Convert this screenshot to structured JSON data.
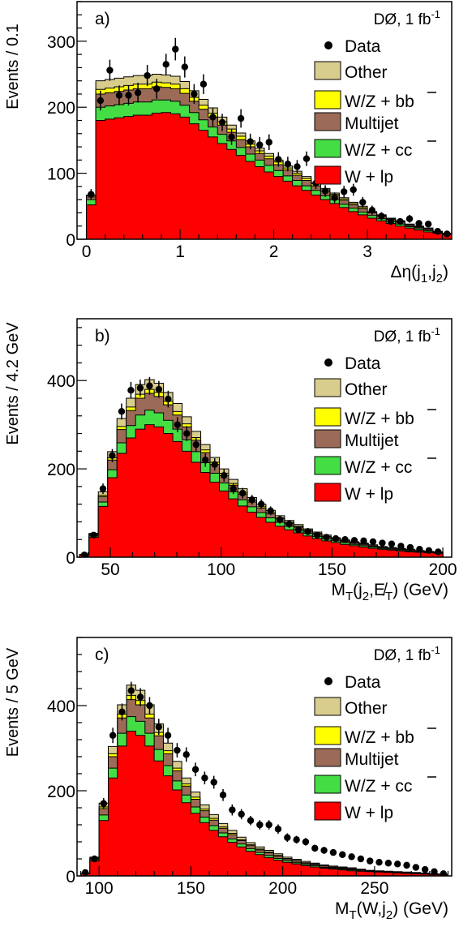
{
  "legend": {
    "data": "Data",
    "other": "Other",
    "wz_bb": "W/Z + bb",
    "multijet": "Multijet",
    "wz_cc": "W/Z + cc",
    "w_lp": "W + lp"
  },
  "colors": {
    "w_lp": "#ff0000",
    "wz_cc": "#44dd44",
    "multijet": "#9b6b57",
    "wz_bb": "#ffff00",
    "other": "#d8cd8c",
    "data": "#000000"
  },
  "chart_data": [
    {
      "type": "bar",
      "stacked": true,
      "panel_label": "a)",
      "corner_label": "DØ, 1 fb",
      "corner_label_sup": "-1",
      "ylabel": "Events / 0.1",
      "xlabel": "Δη(j",
      "xlabel_sub1": "1",
      "xlabel_mid": ",j",
      "xlabel_sub2": "2",
      "xlabel_end": ")",
      "xlim": [
        -0.1,
        3.9
      ],
      "ylim": [
        0,
        360
      ],
      "bin_start": 0.0,
      "bin_width": 0.1,
      "x_ticks": [
        0,
        1,
        2,
        3
      ],
      "y_ticks": [
        0,
        100,
        200,
        300
      ],
      "series": [
        {
          "key": "w_lp",
          "name": "W + lp",
          "values": [
            52,
            180,
            182,
            184,
            186,
            188,
            188,
            191,
            192,
            190,
            185,
            175,
            165,
            155,
            145,
            136,
            127,
            118,
            110,
            102,
            95,
            88,
            81,
            74,
            67,
            60,
            54,
            48,
            42,
            37,
            32,
            28,
            24,
            20,
            17,
            14,
            11,
            9,
            7
          ]
        },
        {
          "key": "wz_cc",
          "name": "W/Z + cc",
          "values": [
            8,
            20,
            20,
            20,
            20,
            20,
            20,
            20,
            19,
            19,
            18,
            17,
            16,
            15,
            14,
            13,
            12,
            11,
            10,
            10,
            9,
            8,
            8,
            7,
            7,
            6,
            6,
            5,
            5,
            4,
            4,
            3,
            3,
            3,
            2,
            2,
            2,
            1,
            1
          ]
        },
        {
          "key": "multijet",
          "name": "Multijet",
          "values": [
            4,
            20,
            20,
            20,
            20,
            20,
            20,
            20,
            19,
            19,
            18,
            17,
            16,
            15,
            14,
            13,
            12,
            11,
            10,
            10,
            9,
            9,
            8,
            8,
            7,
            7,
            6,
            6,
            5,
            5,
            4,
            4,
            3,
            3,
            2,
            2,
            2,
            1,
            1
          ]
        },
        {
          "key": "wz_bb",
          "name": "W/Z + bb",
          "values": [
            2,
            7,
            7,
            7,
            7,
            7,
            7,
            7,
            7,
            7,
            7,
            6,
            6,
            6,
            5,
            5,
            5,
            4,
            4,
            4,
            4,
            3,
            3,
            3,
            3,
            2,
            2,
            2,
            2,
            2,
            1,
            1,
            1,
            1,
            1,
            1,
            1,
            1,
            0
          ]
        },
        {
          "key": "other",
          "name": "Other",
          "values": [
            1,
            13,
            13,
            13,
            13,
            13,
            13,
            12,
            12,
            12,
            11,
            10,
            9,
            8,
            7,
            6,
            5,
            5,
            4,
            4,
            3,
            3,
            3,
            3,
            2,
            2,
            2,
            2,
            2,
            2,
            1,
            1,
            1,
            1,
            1,
            1,
            1,
            0,
            0
          ]
        }
      ],
      "data_points": {
        "name": "Data",
        "values": [
          68,
          210,
          256,
          218,
          218,
          222,
          248,
          228,
          265,
          288,
          261,
          220,
          235,
          185,
          177,
          155,
          183,
          148,
          143,
          147,
          121,
          114,
          110,
          122,
          85,
          73,
          63,
          72,
          75,
          56,
          44,
          35,
          27,
          27,
          31,
          24,
          23,
          12,
          8
        ],
        "errors": [
          8,
          15,
          16,
          15,
          15,
          15,
          16,
          15,
          16,
          17,
          16,
          15,
          15,
          14,
          13,
          12,
          14,
          12,
          12,
          12,
          11,
          11,
          10,
          11,
          9,
          9,
          8,
          9,
          9,
          8,
          7,
          6,
          5,
          5,
          6,
          5,
          5,
          4,
          3
        ]
      }
    },
    {
      "type": "bar",
      "stacked": true,
      "panel_label": "b)",
      "corner_label": "DØ, 1 fb",
      "corner_label_sup": "-1",
      "ylabel": "Events / 4.2 GeV",
      "xlabel": "M",
      "xlabel_sub1": "T",
      "xlabel_mid": "(j",
      "xlabel_sub2": "2",
      "xlabel_end": ",E̸",
      "xlabel_sub3": "T",
      "xlabel_tail": ") (GeV)",
      "xlim": [
        35,
        204
      ],
      "ylim": [
        0,
        540
      ],
      "bin_start": 36.2,
      "bin_width": 4.2,
      "x_ticks": [
        50,
        100,
        150,
        200
      ],
      "y_ticks": [
        0,
        200,
        400
      ],
      "series": [
        {
          "key": "w_lp",
          "name": "W + lp",
          "values": [
            5,
            45,
            115,
            180,
            235,
            270,
            290,
            300,
            295,
            280,
            262,
            240,
            215,
            192,
            170,
            150,
            132,
            116,
            102,
            90,
            79,
            70,
            62,
            55,
            48,
            42,
            37,
            33,
            29,
            26,
            23,
            20,
            18,
            16,
            14,
            12,
            11,
            10,
            9
          ]
        },
        {
          "key": "wz_cc",
          "name": "W/Z + cc",
          "values": [
            1,
            3,
            10,
            18,
            24,
            28,
            32,
            33,
            32,
            30,
            28,
            26,
            24,
            22,
            20,
            18,
            16,
            14,
            12,
            11,
            10,
            9,
            8,
            7,
            6,
            5,
            5,
            4,
            4,
            3,
            3,
            3,
            2,
            2,
            2,
            2,
            2,
            1,
            1
          ]
        },
        {
          "key": "multijet",
          "name": "Multijet",
          "values": [
            0,
            3,
            12,
            22,
            30,
            34,
            38,
            38,
            37,
            35,
            32,
            29,
            26,
            23,
            20,
            17,
            15,
            13,
            11,
            10,
            9,
            8,
            7,
            6,
            5,
            5,
            4,
            4,
            3,
            3,
            3,
            2,
            2,
            2,
            2,
            2,
            1,
            1,
            1
          ]
        },
        {
          "key": "wz_bb",
          "name": "W/Z + bb",
          "values": [
            0,
            1,
            3,
            5,
            7,
            8,
            9,
            9,
            9,
            8,
            8,
            7,
            6,
            6,
            5,
            5,
            4,
            4,
            3,
            3,
            3,
            2,
            2,
            2,
            2,
            2,
            1,
            1,
            1,
            1,
            1,
            1,
            1,
            1,
            1,
            1,
            0,
            0,
            0
          ]
        },
        {
          "key": "other",
          "name": "Other",
          "values": [
            0,
            2,
            8,
            14,
            18,
            20,
            22,
            22,
            21,
            20,
            18,
            16,
            14,
            12,
            11,
            10,
            9,
            8,
            7,
            6,
            5,
            5,
            4,
            4,
            3,
            3,
            3,
            2,
            2,
            2,
            2,
            2,
            1,
            1,
            1,
            1,
            1,
            1,
            1
          ]
        }
      ],
      "data_points": {
        "name": "Data",
        "values": [
          5,
          50,
          155,
          230,
          330,
          378,
          383,
          388,
          380,
          358,
          300,
          280,
          255,
          220,
          210,
          185,
          155,
          145,
          130,
          120,
          105,
          85,
          75,
          62,
          58,
          50,
          45,
          42,
          40,
          38,
          37,
          35,
          32,
          30,
          25,
          22,
          18,
          15,
          12
        ],
        "errors": [
          2,
          7,
          12,
          15,
          18,
          19,
          19,
          20,
          19,
          19,
          17,
          17,
          16,
          15,
          14,
          14,
          12,
          12,
          11,
          11,
          10,
          9,
          9,
          8,
          8,
          7,
          7,
          6,
          6,
          6,
          6,
          6,
          6,
          5,
          5,
          5,
          4,
          4,
          3
        ]
      }
    },
    {
      "type": "bar",
      "stacked": true,
      "panel_label": "c)",
      "corner_label": "DØ, 1 fb",
      "corner_label_sup": "-1",
      "ylabel": "Events / 5 GeV",
      "xlabel": "M",
      "xlabel_sub1": "T",
      "xlabel_mid": "(W,j",
      "xlabel_sub2": "2",
      "xlabel_end": ") (GeV)",
      "xlim": [
        88,
        292
      ],
      "ylim": [
        0,
        560
      ],
      "bin_start": 90,
      "bin_width": 5,
      "x_ticks": [
        100,
        150,
        200,
        250
      ],
      "y_ticks": [
        0,
        200,
        400
      ],
      "series": [
        {
          "key": "w_lp",
          "name": "W + lp",
          "values": [
            5,
            35,
            130,
            230,
            305,
            340,
            330,
            305,
            270,
            235,
            202,
            172,
            147,
            125,
            107,
            92,
            79,
            68,
            58,
            50,
            43,
            37,
            32,
            28,
            24,
            21,
            18,
            16,
            14,
            12,
            11,
            10,
            9,
            8,
            7,
            6,
            5,
            4,
            3,
            3
          ]
        },
        {
          "key": "wz_cc",
          "name": "W/Z + cc",
          "values": [
            1,
            3,
            13,
            23,
            30,
            34,
            33,
            30,
            27,
            24,
            21,
            18,
            15,
            13,
            11,
            9,
            8,
            7,
            6,
            5,
            5,
            4,
            4,
            3,
            3,
            3,
            2,
            2,
            2,
            2,
            1,
            1,
            1,
            1,
            1,
            1,
            1,
            1,
            0,
            0
          ]
        },
        {
          "key": "multijet",
          "name": "Multijet",
          "values": [
            0,
            3,
            15,
            27,
            36,
            40,
            39,
            36,
            32,
            28,
            24,
            21,
            18,
            15,
            13,
            11,
            10,
            8,
            7,
            6,
            6,
            5,
            4,
            4,
            3,
            3,
            3,
            2,
            2,
            2,
            2,
            1,
            1,
            1,
            1,
            1,
            1,
            1,
            1,
            0
          ]
        },
        {
          "key": "wz_bb",
          "name": "W/Z + bb",
          "values": [
            0,
            1,
            4,
            7,
            9,
            10,
            10,
            9,
            8,
            7,
            6,
            5,
            5,
            4,
            4,
            3,
            3,
            2,
            2,
            2,
            2,
            2,
            1,
            1,
            1,
            1,
            1,
            1,
            1,
            1,
            1,
            0,
            0,
            0,
            0,
            0,
            0,
            0,
            0,
            0
          ]
        },
        {
          "key": "other",
          "name": "Other",
          "values": [
            1,
            2,
            9,
            17,
            22,
            24,
            24,
            22,
            20,
            18,
            16,
            14,
            12,
            10,
            9,
            8,
            7,
            6,
            5,
            5,
            4,
            4,
            3,
            3,
            3,
            2,
            2,
            2,
            2,
            2,
            1,
            1,
            1,
            1,
            1,
            1,
            1,
            1,
            1,
            1
          ]
        }
      ],
      "data_points": {
        "name": "Data",
        "values": [
          8,
          40,
          170,
          330,
          385,
          435,
          420,
          400,
          350,
          330,
          295,
          285,
          250,
          230,
          220,
          190,
          155,
          145,
          130,
          120,
          120,
          110,
          90,
          85,
          80,
          65,
          60,
          55,
          50,
          45,
          40,
          35,
          32,
          30,
          28,
          25,
          20,
          15,
          10,
          5
        ],
        "errors": [
          3,
          6,
          13,
          18,
          20,
          21,
          21,
          20,
          19,
          18,
          17,
          17,
          16,
          15,
          15,
          14,
          13,
          12,
          11,
          11,
          11,
          11,
          10,
          9,
          9,
          8,
          8,
          7,
          7,
          7,
          6,
          6,
          6,
          5,
          5,
          5,
          4,
          4,
          3,
          2
        ]
      }
    }
  ]
}
